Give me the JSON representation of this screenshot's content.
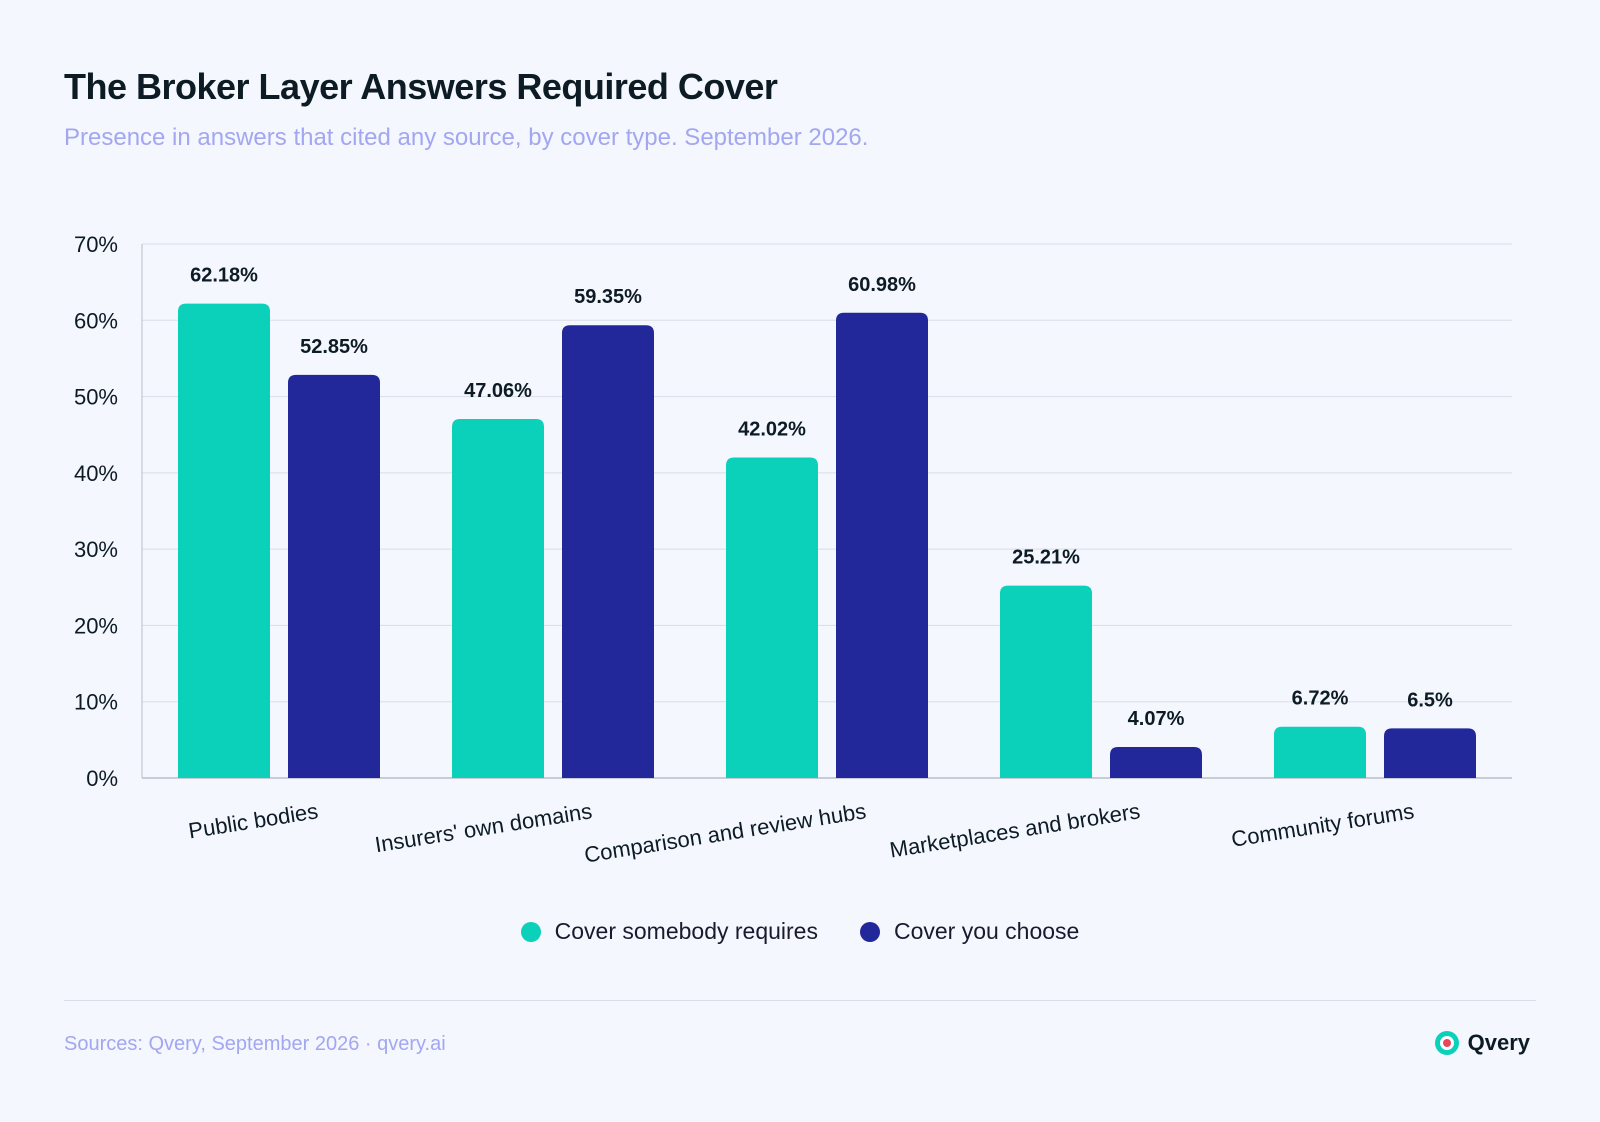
{
  "header": {
    "title": "The Broker Layer Answers Required Cover",
    "subtitle": "Presence in answers that cited any source, by cover type. September 2026."
  },
  "footer": {
    "source": "Sources: Qvery, September 2026 · qvery.ai",
    "brand": "Qvery"
  },
  "colors": {
    "series_a": "#0bd1bb",
    "series_b": "#22289a",
    "grid": "#d9dde6",
    "text": "#0d1b24"
  },
  "chart_data": {
    "type": "bar",
    "categories": [
      "Public bodies",
      "Insurers' own domains",
      "Comparison and review hubs",
      "Marketplaces and brokers",
      "Community forums"
    ],
    "series": [
      {
        "name": "Cover somebody requires",
        "values": [
          62.18,
          47.06,
          42.02,
          25.21,
          6.72
        ],
        "labels": [
          "62.18%",
          "47.06%",
          "42.02%",
          "25.21%",
          "6.72%"
        ]
      },
      {
        "name": "Cover you choose",
        "values": [
          52.85,
          59.35,
          60.98,
          4.07,
          6.5
        ],
        "labels": [
          "52.85%",
          "59.35%",
          "60.98%",
          "4.07%",
          "6.5%"
        ]
      }
    ],
    "yticks": [
      0,
      10,
      20,
      30,
      40,
      50,
      60,
      70
    ],
    "ytick_labels": [
      "0%",
      "10%",
      "20%",
      "30%",
      "40%",
      "50%",
      "60%",
      "70%"
    ],
    "ylim": [
      0,
      70
    ],
    "grid": true,
    "legend_position": "bottom-center"
  }
}
